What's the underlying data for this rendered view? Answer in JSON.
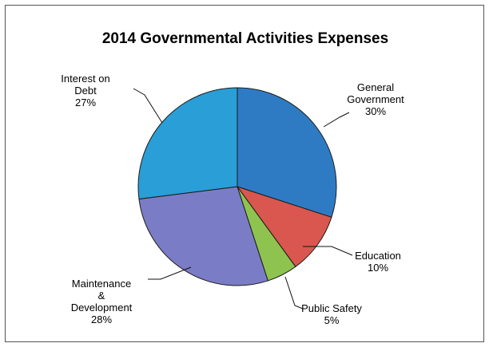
{
  "chart_data": {
    "type": "pie",
    "title": "2014 Governmental Activities Expenses",
    "slices": [
      {
        "label_lines": [
          "General",
          "Government"
        ],
        "pct_label": "30%",
        "value": 30,
        "color": "#2E7BC4"
      },
      {
        "label_lines": [
          "Education"
        ],
        "pct_label": "10%",
        "value": 10,
        "color": "#D9574F"
      },
      {
        "label_lines": [
          "Public Safety"
        ],
        "pct_label": "5%",
        "value": 5,
        "color": "#8FC34F"
      },
      {
        "label_lines": [
          "Maintenance",
          "&",
          "Development"
        ],
        "pct_label": "28%",
        "value": 28,
        "color": "#7B7CC6"
      },
      {
        "label_lines": [
          "Interest on",
          "Debt"
        ],
        "pct_label": "27%",
        "value": 27,
        "color": "#2A9ED6"
      }
    ]
  }
}
